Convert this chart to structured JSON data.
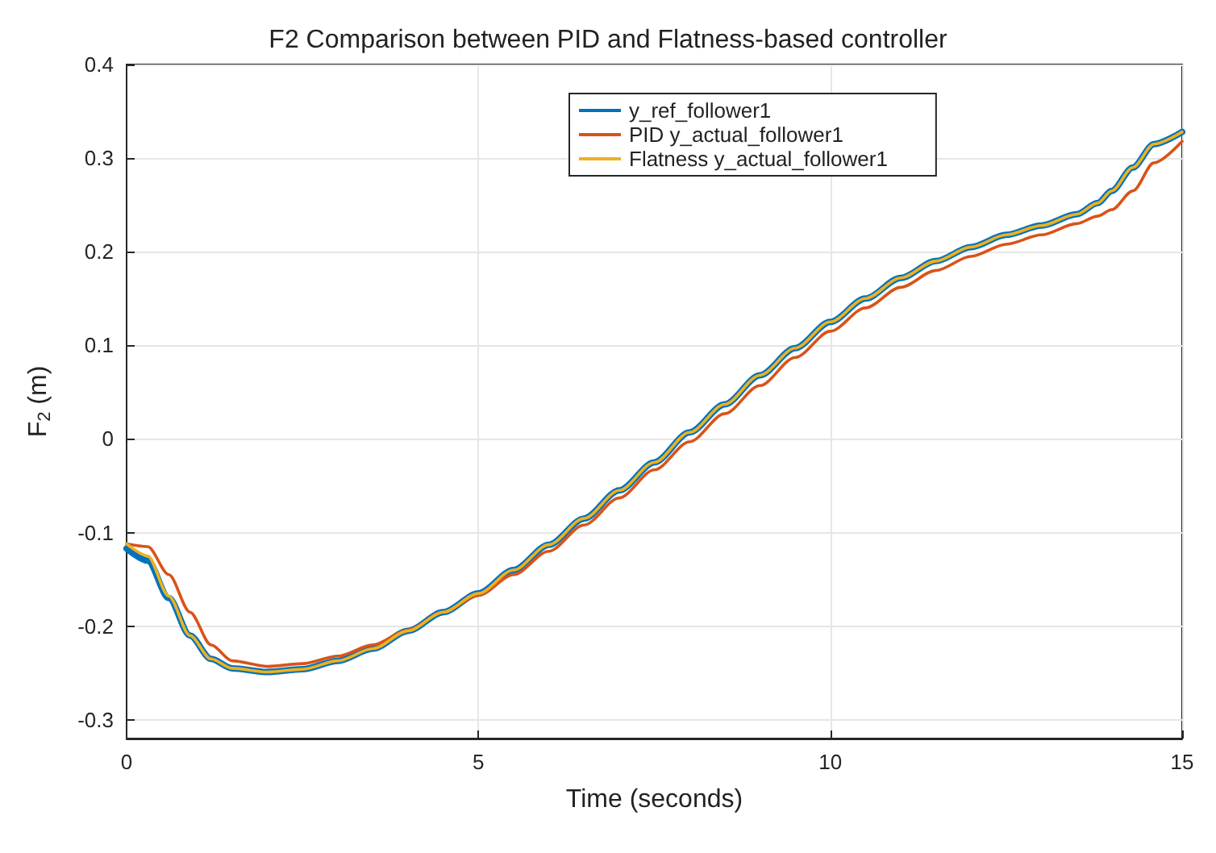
{
  "chart_data": {
    "type": "line",
    "title": "F2 Comparison between PID and Flatness-based controller",
    "xlabel": "Time (seconds)",
    "ylabel": "F$_{2}$ (m)",
    "x": [
      0,
      0.3,
      0.6,
      0.9,
      1.2,
      1.5,
      2,
      2.5,
      3,
      3.5,
      4,
      4.5,
      5,
      5.5,
      6,
      6.5,
      7,
      7.5,
      8,
      8.5,
      9,
      9.5,
      10,
      10.5,
      11,
      11.5,
      12,
      12.5,
      13,
      13.5,
      13.8,
      14,
      14.3,
      14.6,
      15
    ],
    "series": [
      {
        "name": "y_ref_follower1",
        "color": "#0072bd",
        "values": [
          -0.117,
          -0.13,
          -0.17,
          -0.21,
          -0.235,
          -0.245,
          -0.249,
          -0.246,
          -0.237,
          -0.224,
          -0.205,
          -0.185,
          -0.165,
          -0.14,
          -0.113,
          -0.085,
          -0.055,
          -0.025,
          0.007,
          0.037,
          0.068,
          0.097,
          0.125,
          0.15,
          0.172,
          0.19,
          0.205,
          0.218,
          0.228,
          0.24,
          0.252,
          0.265,
          0.29,
          0.315,
          0.328
        ]
      },
      {
        "name": "PID y_actual_follower1",
        "color": "#d95319",
        "values": [
          -0.112,
          -0.115,
          -0.145,
          -0.185,
          -0.22,
          -0.237,
          -0.243,
          -0.24,
          -0.232,
          -0.22,
          -0.204,
          -0.185,
          -0.167,
          -0.145,
          -0.12,
          -0.092,
          -0.063,
          -0.033,
          -0.003,
          0.027,
          0.057,
          0.087,
          0.115,
          0.14,
          0.162,
          0.18,
          0.195,
          0.208,
          0.218,
          0.23,
          0.238,
          0.245,
          0.265,
          0.295,
          0.318
        ]
      },
      {
        "name": "Flatness y_actual_follower1",
        "color": "#edb120",
        "values": [
          -0.112,
          -0.125,
          -0.168,
          -0.21,
          -0.235,
          -0.245,
          -0.249,
          -0.246,
          -0.237,
          -0.224,
          -0.205,
          -0.185,
          -0.165,
          -0.14,
          -0.113,
          -0.085,
          -0.055,
          -0.025,
          0.007,
          0.037,
          0.068,
          0.097,
          0.125,
          0.15,
          0.172,
          0.19,
          0.205,
          0.218,
          0.228,
          0.24,
          0.252,
          0.265,
          0.29,
          0.315,
          0.328
        ]
      }
    ],
    "xlim": [
      0,
      15
    ],
    "xticks": [
      0,
      5,
      10,
      15
    ],
    "ylim": [
      -0.32,
      0.4
    ],
    "yticks": [
      -0.3,
      -0.2,
      -0.1,
      0,
      0.1,
      0.2,
      0.3,
      0.4
    ],
    "grid": true,
    "legend": "top",
    "marker": "none",
    "line_style": "solid"
  }
}
